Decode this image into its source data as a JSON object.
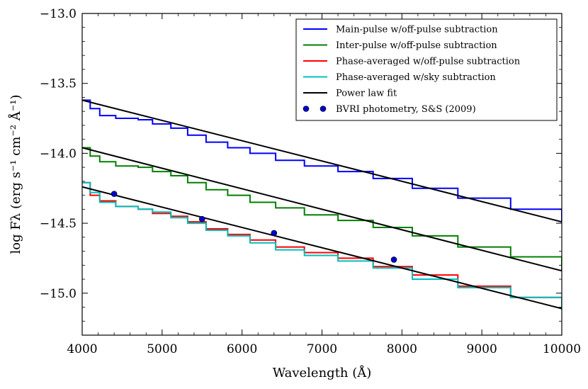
{
  "chart_data": {
    "type": "line",
    "xlabel": "Wavelength (Å)",
    "ylabel": "log Fλ (erg s⁻¹ cm⁻² Å⁻¹)",
    "xlim": [
      4000,
      10000
    ],
    "ylim": [
      -15.3,
      -13.0
    ],
    "x_ticks": [
      4000,
      5000,
      6000,
      7000,
      8000,
      9000,
      10000
    ],
    "x_tick_labels": [
      "4000",
      "5000",
      "6000",
      "7000",
      "8000",
      "9000",
      "10000"
    ],
    "y_ticks": [
      -13.0,
      -13.5,
      -14.0,
      -14.5,
      -15.0
    ],
    "y_tick_labels": [
      "−13.0",
      "−13.5",
      "−14.0",
      "−14.5",
      "−15.0"
    ],
    "grid": false,
    "legend_position": "top-right",
    "bin_edges": [
      4000,
      4100,
      4220,
      4420,
      4700,
      4880,
      5110,
      5320,
      5550,
      5820,
      6100,
      6420,
      6780,
      7200,
      7640,
      8130,
      8700,
      9360,
      10000
    ],
    "series": [
      {
        "name": "Main-pulse w/off-pulse subtraction",
        "color": "#0000ff",
        "style": "step",
        "values": [
          -13.62,
          -13.68,
          -13.73,
          -13.75,
          -13.76,
          -13.79,
          -13.82,
          -13.87,
          -13.92,
          -13.96,
          -14.0,
          -14.05,
          -14.09,
          -14.13,
          -14.18,
          -14.25,
          -14.32,
          -14.4,
          -14.49
        ]
      },
      {
        "name": "Inter-pulse w/off-pulse subtraction",
        "color": "#008000",
        "style": "step",
        "values": [
          -13.96,
          -14.02,
          -14.06,
          -14.09,
          -14.1,
          -14.13,
          -14.16,
          -14.21,
          -14.26,
          -14.3,
          -14.35,
          -14.39,
          -14.44,
          -14.48,
          -14.53,
          -14.59,
          -14.67,
          -14.74,
          -14.84
        ]
      },
      {
        "name": "Phase-averaged w/off-pulse subtraction",
        "color": "#ff0000",
        "style": "step",
        "values": [
          -14.21,
          -14.3,
          -14.34,
          -14.38,
          -14.4,
          -14.43,
          -14.45,
          -14.49,
          -14.54,
          -14.58,
          -14.62,
          -14.67,
          -14.71,
          -14.75,
          -14.81,
          -14.87,
          -14.95,
          -15.03,
          -15.11
        ]
      },
      {
        "name": "Phase-averaged w/sky subtraction",
        "color": "#00bfbf",
        "style": "step",
        "values": [
          -14.21,
          -14.28,
          -14.35,
          -14.38,
          -14.4,
          -14.42,
          -14.46,
          -14.5,
          -14.55,
          -14.59,
          -14.64,
          -14.69,
          -14.73,
          -14.77,
          -14.82,
          -14.9,
          -14.96,
          -15.03,
          -15.12
        ]
      },
      {
        "name": "Power law fit",
        "color": "#000000",
        "style": "line",
        "fits": [
          {
            "x": [
              4000,
              10000
            ],
            "y": [
              -13.62,
              -14.49
            ]
          },
          {
            "x": [
              4000,
              10000
            ],
            "y": [
              -13.96,
              -14.84
            ]
          },
          {
            "x": [
              4000,
              10000
            ],
            "y": [
              -14.24,
              -15.11
            ]
          }
        ]
      },
      {
        "name": "BVRI photometry, S&S (2009)",
        "color": "#0000cc",
        "style": "scatter",
        "x": [
          4400,
          5500,
          6400,
          7900
        ],
        "y": [
          -14.29,
          -14.47,
          -14.57,
          -14.76
        ]
      }
    ]
  }
}
